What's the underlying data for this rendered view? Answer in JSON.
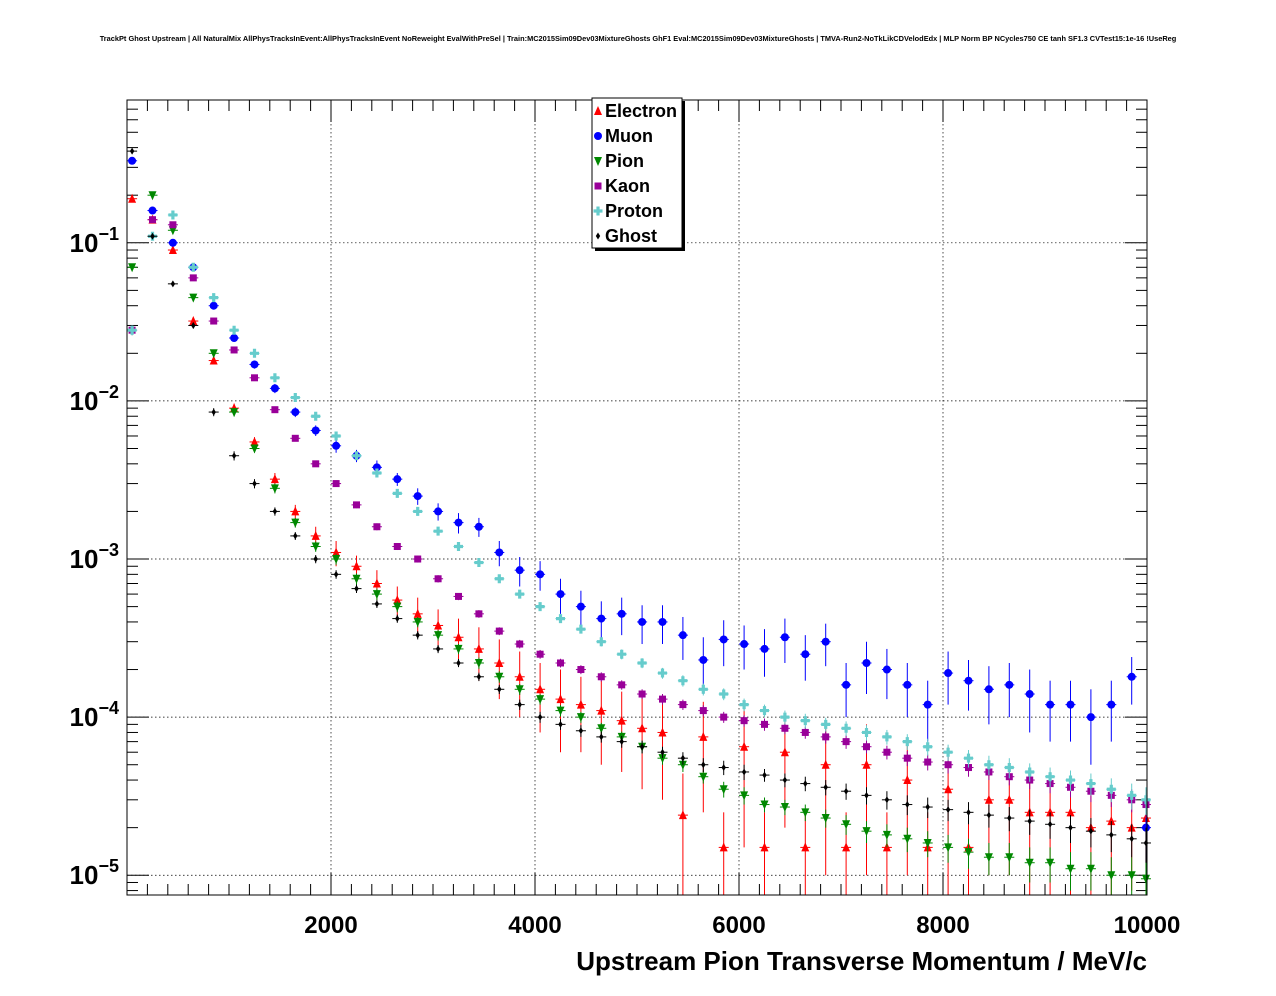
{
  "chart_data": {
    "type": "scatter",
    "title": "TrackPt Ghost Upstream | All NaturalMix AllPhysTracksInEvent:AllPhysTracksInEvent NoReweight EvalWithPreSel | Train:MC2015Sim09Dev03MixtureGhosts GhF1 Eval:MC2015Sim09Dev03MixtureGhosts | TMVA-Run2-NoTkLikCDVelodEdx | MLP Norm BP NCycles750 CE tanh SF1.3 CVTest15:1e-16 !UseReg",
    "xlabel": "Upstream Pion Transverse Momentum / MeV/c",
    "ylabel": "",
    "xlim": [
      0,
      10000
    ],
    "ylim": [
      7.5e-06,
      0.8
    ],
    "yscale": "log",
    "grid": true,
    "legend_position": "top-center",
    "x_ticks": [
      {
        "value": 2000,
        "label": "2000"
      },
      {
        "value": 4000,
        "label": "4000"
      },
      {
        "value": 6000,
        "label": "6000"
      },
      {
        "value": 8000,
        "label": "8000"
      },
      {
        "value": 10000,
        "label": "10000"
      }
    ],
    "y_ticks": [
      {
        "value": 0.1,
        "base": "10",
        "exp": "−1"
      },
      {
        "value": 0.01,
        "base": "10",
        "exp": "−2"
      },
      {
        "value": 0.001,
        "base": "10",
        "exp": "−3"
      },
      {
        "value": 0.0001,
        "base": "10",
        "exp": "−4"
      },
      {
        "value": 1e-05,
        "base": "10",
        "exp": "−5"
      }
    ],
    "series": [
      {
        "name": "Electron",
        "color": "#ff0000",
        "marker": "triangle-up",
        "x": [
          50,
          250,
          450,
          650,
          850,
          1050,
          1250,
          1450,
          1650,
          1850,
          2050,
          2250,
          2450,
          2650,
          2850,
          3050,
          3250,
          3450,
          3650,
          3850,
          4050,
          4250,
          4450,
          4650,
          4850,
          5050,
          5250,
          5450,
          5650,
          5850,
          6050,
          6250,
          6450,
          6650,
          6850,
          7050,
          7250,
          7450,
          7650,
          7850,
          8050,
          8250,
          8450,
          8650,
          8850,
          9050,
          9250,
          9450,
          9650,
          9850,
          9990
        ],
        "y": [
          0.19,
          0.14,
          0.09,
          0.032,
          0.018,
          0.009,
          0.0055,
          0.0032,
          0.002,
          0.0014,
          0.0011,
          0.0009,
          0.0007,
          0.00055,
          0.00045,
          0.00038,
          0.00032,
          0.00027,
          0.00022,
          0.00018,
          0.00015,
          0.00013,
          0.00012,
          0.00011,
          9.5e-05,
          8.5e-05,
          8e-05,
          2.4e-05,
          7.5e-05,
          1.5e-05,
          6.5e-05,
          1.5e-05,
          6e-05,
          1.5e-05,
          5e-05,
          1.5e-05,
          5e-05,
          1.5e-05,
          4e-05,
          1.5e-05,
          3.5e-05,
          1.5e-05,
          3e-05,
          3e-05,
          2.5e-05,
          2.5e-05,
          2.5e-05,
          2e-05,
          2.2e-05,
          2e-05,
          2.3e-05
        ],
        "err": [
          0.008,
          0.006,
          0.004,
          0.0015,
          0.001,
          0.0006,
          0.0004,
          0.0003,
          0.0002,
          0.0002,
          0.0002,
          0.00015,
          0.00015,
          0.00012,
          0.00012,
          0.0001,
          0.0001,
          0.0001,
          9e-05,
          8e-05,
          7e-05,
          7e-05,
          6e-05,
          6e-05,
          5e-05,
          5e-05,
          5e-05,
          2e-05,
          5e-05,
          1e-05,
          5e-05,
          1e-05,
          4e-05,
          1e-05,
          4e-05,
          1e-05,
          4e-05,
          1e-05,
          3e-05,
          1e-05,
          3e-05,
          1e-05,
          2e-05,
          2e-05,
          2e-05,
          2e-05,
          2e-05,
          1.5e-05,
          1.5e-05,
          1.2e-05,
          1.2e-05
        ]
      },
      {
        "name": "Muon",
        "color": "#0000ff",
        "marker": "circle",
        "x": [
          50,
          250,
          450,
          650,
          850,
          1050,
          1250,
          1450,
          1650,
          1850,
          2050,
          2250,
          2450,
          2650,
          2850,
          3050,
          3250,
          3450,
          3650,
          3850,
          4050,
          4250,
          4450,
          4650,
          4850,
          5050,
          5250,
          5450,
          5650,
          5850,
          6050,
          6250,
          6450,
          6650,
          6850,
          7050,
          7250,
          7450,
          7650,
          7850,
          8050,
          8250,
          8450,
          8650,
          8850,
          9050,
          9250,
          9450,
          9650,
          9850,
          9990
        ],
        "y": [
          0.33,
          0.16,
          0.1,
          0.07,
          0.04,
          0.025,
          0.017,
          0.012,
          0.0085,
          0.0065,
          0.0052,
          0.0045,
          0.0038,
          0.0032,
          0.0025,
          0.002,
          0.0017,
          0.0016,
          0.0011,
          0.00085,
          0.0008,
          0.0006,
          0.0005,
          0.00042,
          0.00045,
          0.0004,
          0.0004,
          0.00033,
          0.00023,
          0.00031,
          0.00029,
          0.00027,
          0.00032,
          0.00025,
          0.0003,
          0.00016,
          0.00022,
          0.0002,
          0.00016,
          0.00012,
          0.00019,
          0.00017,
          0.00015,
          0.00016,
          0.00014,
          0.00012,
          0.00012,
          0.0001,
          0.00012,
          0.00018,
          2e-05
        ],
        "err": [
          0.01,
          0.006,
          0.004,
          0.003,
          0.002,
          0.0012,
          0.001,
          0.0008,
          0.0006,
          0.0005,
          0.0005,
          0.0004,
          0.0004,
          0.0003,
          0.0003,
          0.00025,
          0.00025,
          0.00022,
          0.0002,
          0.00018,
          0.00017,
          0.00015,
          0.00013,
          0.00012,
          0.00012,
          0.00011,
          0.00011,
          0.0001,
          9e-05,
          0.0001,
          9e-05,
          9e-05,
          0.0001,
          8e-05,
          9e-05,
          6e-05,
          8e-05,
          7e-05,
          6e-05,
          5e-05,
          7e-05,
          6e-05,
          6e-05,
          6e-05,
          6e-05,
          5e-05,
          5e-05,
          5e-05,
          5e-05,
          6e-05,
          1e-05
        ]
      },
      {
        "name": "Pion",
        "color": "#008800",
        "marker": "triangle-down",
        "x": [
          50,
          250,
          450,
          650,
          850,
          1050,
          1250,
          1450,
          1650,
          1850,
          2050,
          2250,
          2450,
          2650,
          2850,
          3050,
          3250,
          3450,
          3650,
          3850,
          4050,
          4250,
          4450,
          4650,
          4850,
          5050,
          5250,
          5450,
          5650,
          5850,
          6050,
          6250,
          6450,
          6650,
          6850,
          7050,
          7250,
          7450,
          7650,
          7850,
          8050,
          8250,
          8450,
          8650,
          8850,
          9050,
          9250,
          9450,
          9650,
          9850,
          9990
        ],
        "y": [
          0.07,
          0.2,
          0.12,
          0.045,
          0.02,
          0.0085,
          0.005,
          0.0028,
          0.0017,
          0.0012,
          0.001,
          0.00075,
          0.0006,
          0.0005,
          0.0004,
          0.00033,
          0.00027,
          0.00022,
          0.00018,
          0.00015,
          0.00013,
          0.00011,
          0.0001,
          8.5e-05,
          7.5e-05,
          6.5e-05,
          5.5e-05,
          5e-05,
          4.2e-05,
          3.5e-05,
          3.2e-05,
          2.8e-05,
          2.7e-05,
          2.5e-05,
          2.3e-05,
          2.1e-05,
          1.9e-05,
          1.8e-05,
          1.7e-05,
          1.6e-05,
          1.5e-05,
          1.4e-05,
          1.3e-05,
          1.3e-05,
          1.2e-05,
          1.2e-05,
          1.1e-05,
          1.1e-05,
          1e-05,
          1e-05,
          9.5e-06
        ],
        "err": [
          0.003,
          0.006,
          0.004,
          0.002,
          0.001,
          0.0005,
          0.0003,
          0.0002,
          0.00012,
          9e-05,
          8e-05,
          6e-05,
          5e-05,
          4e-05,
          3e-05,
          2.5e-05,
          2e-05,
          1.8e-05,
          1.5e-05,
          1.2e-05,
          1e-05,
          9e-06,
          8e-06,
          7e-06,
          6e-06,
          6e-06,
          5e-06,
          5e-06,
          4e-06,
          4e-06,
          4e-06,
          3e-06,
          3e-06,
          3e-06,
          3e-06,
          3e-06,
          3e-06,
          3e-06,
          3e-06,
          3e-06,
          3e-06,
          3e-06,
          3e-06,
          3e-06,
          3e-06,
          3e-06,
          3e-06,
          3e-06,
          3e-06,
          3e-06,
          3e-06
        ]
      },
      {
        "name": "Kaon",
        "color": "#990099",
        "marker": "square",
        "x": [
          50,
          250,
          450,
          650,
          850,
          1050,
          1250,
          1450,
          1650,
          1850,
          2050,
          2250,
          2450,
          2650,
          2850,
          3050,
          3250,
          3450,
          3650,
          3850,
          4050,
          4250,
          4450,
          4650,
          4850,
          5050,
          5250,
          5450,
          5650,
          5850,
          6050,
          6250,
          6450,
          6650,
          6850,
          7050,
          7250,
          7450,
          7650,
          7850,
          8050,
          8250,
          8450,
          8650,
          8850,
          9050,
          9250,
          9450,
          9650,
          9850,
          9990
        ],
        "y": [
          0.028,
          0.14,
          0.13,
          0.06,
          0.032,
          0.021,
          0.014,
          0.0088,
          0.0058,
          0.004,
          0.003,
          0.0022,
          0.0016,
          0.0012,
          0.001,
          0.00075,
          0.00058,
          0.00045,
          0.00035,
          0.00029,
          0.00025,
          0.00022,
          0.0002,
          0.00018,
          0.00016,
          0.00014,
          0.00013,
          0.00012,
          0.00011,
          0.0001,
          9.5e-05,
          9e-05,
          8.5e-05,
          8e-05,
          7.5e-05,
          7e-05,
          6.5e-05,
          6e-05,
          5.5e-05,
          5.2e-05,
          5e-05,
          4.8e-05,
          4.5e-05,
          4.2e-05,
          4e-05,
          3.8e-05,
          3.6e-05,
          3.4e-05,
          3.2e-05,
          3e-05,
          2.8e-05
        ],
        "err": [
          0.002,
          0.005,
          0.004,
          0.002,
          0.0012,
          0.0008,
          0.0005,
          0.0003,
          0.0002,
          0.00015,
          0.00012,
          0.0001,
          8e-05,
          6e-05,
          5e-05,
          4e-05,
          3e-05,
          2.5e-05,
          2e-05,
          1.8e-05,
          1.6e-05,
          1.4e-05,
          1.3e-05,
          1.2e-05,
          1.1e-05,
          1e-05,
          1e-05,
          9e-06,
          9e-06,
          8e-06,
          8e-06,
          8e-06,
          7e-06,
          7e-06,
          7e-06,
          7e-06,
          6e-06,
          6e-06,
          6e-06,
          6e-06,
          6e-06,
          6e-06,
          5e-06,
          5e-06,
          5e-06,
          5e-06,
          5e-06,
          5e-06,
          5e-06,
          5e-06,
          5e-06
        ]
      },
      {
        "name": "Proton",
        "color": "#66cccc",
        "marker": "cross",
        "x": [
          50,
          250,
          450,
          650,
          850,
          1050,
          1250,
          1450,
          1650,
          1850,
          2050,
          2250,
          2450,
          2650,
          2850,
          3050,
          3250,
          3450,
          3650,
          3850,
          4050,
          4250,
          4450,
          4650,
          4850,
          5050,
          5250,
          5450,
          5650,
          5850,
          6050,
          6250,
          6450,
          6650,
          6850,
          7050,
          7250,
          7450,
          7650,
          7850,
          8050,
          8250,
          8450,
          8650,
          8850,
          9050,
          9250,
          9450,
          9650,
          9850,
          9990
        ],
        "y": [
          0.028,
          0.11,
          0.15,
          0.07,
          0.045,
          0.028,
          0.02,
          0.014,
          0.0105,
          0.008,
          0.006,
          0.0045,
          0.0035,
          0.0026,
          0.002,
          0.0015,
          0.0012,
          0.00095,
          0.00075,
          0.0006,
          0.0005,
          0.00042,
          0.00036,
          0.0003,
          0.00025,
          0.00022,
          0.00019,
          0.00017,
          0.00015,
          0.00014,
          0.00012,
          0.00011,
          0.0001,
          9.5e-05,
          9e-05,
          8.5e-05,
          8e-05,
          7.5e-05,
          7e-05,
          6.5e-05,
          6e-05,
          5.5e-05,
          5e-05,
          4.8e-05,
          4.5e-05,
          4.2e-05,
          4e-05,
          3.8e-05,
          3.5e-05,
          3.2e-05,
          3e-05
        ],
        "err": [
          0.002,
          0.004,
          0.005,
          0.003,
          0.002,
          0.0012,
          0.0008,
          0.0005,
          0.0004,
          0.0003,
          0.00025,
          0.0002,
          0.00015,
          0.00012,
          0.0001,
          8e-05,
          6e-05,
          5e-05,
          4e-05,
          3.5e-05,
          3e-05,
          2.5e-05,
          2.2e-05,
          2e-05,
          1.8e-05,
          1.6e-05,
          1.5e-05,
          1.4e-05,
          1.3e-05,
          1.2e-05,
          1.1e-05,
          1e-05,
          1e-05,
          1e-05,
          9e-06,
          9e-06,
          9e-06,
          8e-06,
          8e-06,
          8e-06,
          7e-06,
          7e-06,
          7e-06,
          7e-06,
          6e-06,
          6e-06,
          6e-06,
          6e-06,
          6e-06,
          6e-06,
          6e-06
        ]
      },
      {
        "name": "Ghost",
        "color": "#000000",
        "marker": "diamond",
        "x": [
          50,
          250,
          450,
          650,
          850,
          1050,
          1250,
          1450,
          1650,
          1850,
          2050,
          2250,
          2450,
          2650,
          2850,
          3050,
          3250,
          3450,
          3650,
          3850,
          4050,
          4250,
          4450,
          4650,
          4850,
          5050,
          5250,
          5450,
          5650,
          5850,
          6050,
          6250,
          6450,
          6650,
          6850,
          7050,
          7250,
          7450,
          7650,
          7850,
          8050,
          8250,
          8450,
          8650,
          8850,
          9050,
          9250,
          9450,
          9650,
          9850,
          9990
        ],
        "y": [
          0.38,
          0.11,
          0.055,
          0.03,
          0.0085,
          0.0045,
          0.003,
          0.002,
          0.0014,
          0.001,
          0.0008,
          0.00065,
          0.00052,
          0.00042,
          0.00033,
          0.00027,
          0.00022,
          0.00018,
          0.00015,
          0.00012,
          0.0001,
          9e-05,
          8.2e-05,
          7.5e-05,
          7e-05,
          6.5e-05,
          6e-05,
          5.5e-05,
          5e-05,
          4.8e-05,
          4.5e-05,
          4.3e-05,
          4e-05,
          3.8e-05,
          3.6e-05,
          3.4e-05,
          3.2e-05,
          3e-05,
          2.8e-05,
          2.7e-05,
          2.6e-05,
          2.5e-05,
          2.4e-05,
          2.3e-05,
          2.2e-05,
          2.1e-05,
          2e-05,
          1.9e-05,
          1.8e-05,
          1.7e-05,
          1.6e-05
        ],
        "err": [
          0.008,
          0.004,
          0.002,
          0.0012,
          0.0005,
          0.0003,
          0.0002,
          0.00012,
          8e-05,
          6e-05,
          5e-05,
          4e-05,
          3e-05,
          2.5e-05,
          2e-05,
          1.6e-05,
          1.3e-05,
          1.1e-05,
          1e-05,
          9e-06,
          8e-06,
          7e-06,
          7e-06,
          6e-06,
          6e-06,
          6e-06,
          5e-06,
          5e-06,
          5e-06,
          5e-06,
          5e-06,
          4e-06,
          4e-06,
          4e-06,
          4e-06,
          4e-06,
          4e-06,
          4e-06,
          4e-06,
          4e-06,
          4e-06,
          4e-06,
          4e-06,
          4e-06,
          4e-06,
          4e-06,
          4e-06,
          4e-06,
          4e-06,
          4e-06,
          4e-06
        ]
      }
    ]
  }
}
